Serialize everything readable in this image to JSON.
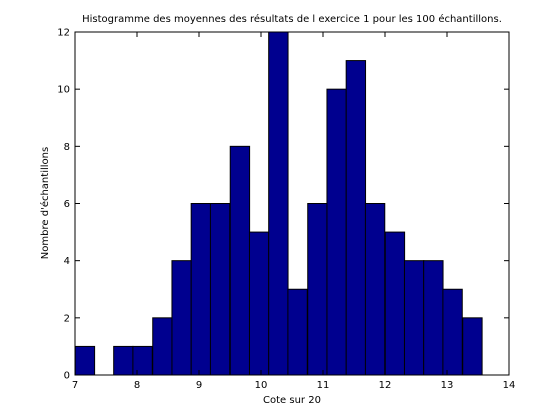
{
  "chart_data": {
    "type": "bar",
    "title": "Histogramme des moyennes des résultats de l exercice 1 pour les 100 échantillons.",
    "xlabel": "Cote sur 20",
    "ylabel": "Nombre d'échantillons",
    "xlim": [
      7,
      14
    ],
    "ylim": [
      0,
      12
    ],
    "bin_width": 0.3125,
    "bins": [
      {
        "x": 7.16,
        "value": 1
      },
      {
        "x": 7.47,
        "value": 0
      },
      {
        "x": 7.78,
        "value": 1
      },
      {
        "x": 8.09,
        "value": 1
      },
      {
        "x": 8.41,
        "value": 2
      },
      {
        "x": 8.72,
        "value": 4
      },
      {
        "x": 9.03,
        "value": 6
      },
      {
        "x": 9.34,
        "value": 6
      },
      {
        "x": 9.66,
        "value": 8
      },
      {
        "x": 9.97,
        "value": 5
      },
      {
        "x": 10.28,
        "value": 12
      },
      {
        "x": 10.59,
        "value": 3
      },
      {
        "x": 10.91,
        "value": 6
      },
      {
        "x": 11.22,
        "value": 10
      },
      {
        "x": 11.53,
        "value": 11
      },
      {
        "x": 11.84,
        "value": 6
      },
      {
        "x": 12.16,
        "value": 5
      },
      {
        "x": 12.47,
        "value": 4
      },
      {
        "x": 12.78,
        "value": 4
      },
      {
        "x": 13.09,
        "value": 3
      },
      {
        "x": 13.41,
        "value": 2
      }
    ],
    "xticks": [
      "7",
      "8",
      "9",
      "10",
      "11",
      "12",
      "13",
      "14"
    ],
    "yticks": [
      "0",
      "2",
      "4",
      "6",
      "8",
      "10",
      "12"
    ],
    "grid": false,
    "bar_color": "#00008f",
    "edge_color": "#000000"
  }
}
